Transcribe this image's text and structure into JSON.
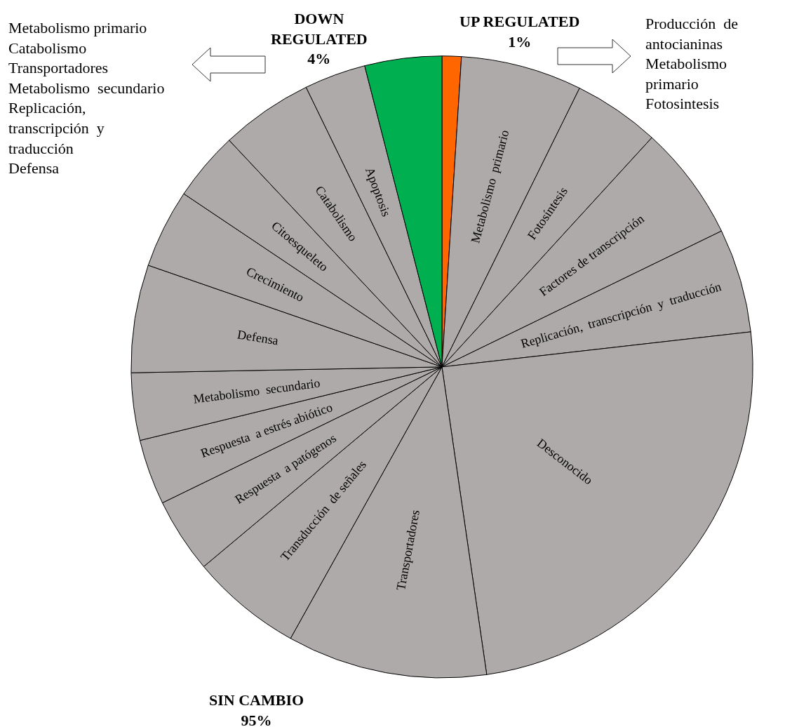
{
  "chart_data": {
    "type": "pie",
    "categories": [
      null,
      "Metabolismo  primario",
      "Fotosíntesis",
      "Factores de transcripción",
      "Replicación,  transcripción  y  traducción",
      "Desconocido",
      "Transportadores",
      "Transducción  de señales",
      "Respuesta  a patógenos",
      "Respuesta  a estrés abiótico",
      "Metabolismo  secundario",
      "Defensa",
      "Crecimiento",
      "Citoesqueleto",
      "Catabolismo",
      "Apoptosis",
      null
    ],
    "values": [
      1,
      6.3,
      4.5,
      6.0,
      5.4,
      24.5,
      10.4,
      5.8,
      3.9,
      3.4,
      3.5,
      5.6,
      4.1,
      3.6,
      4.8,
      3.2,
      4
    ],
    "colors": [
      "#ff6600",
      "#aeaaaa",
      "#aeaaaa",
      "#aeaaaa",
      "#aeaaaa",
      "#aeaaaa",
      "#aeaaaa",
      "#aeaaaa",
      "#aeaaaa",
      "#aeaaaa",
      "#aeaaaa",
      "#aeaaaa",
      "#aeaaaa",
      "#aeaaaa",
      "#aeaaaa",
      "#aeaaaa",
      "#00b050"
    ],
    "annotations": [
      "UP REGULATED\n1%",
      "DOWN\nREGULATED\n4%",
      "SIN CAMBIO\n95%",
      "Metabolismo primario\nCatabolismo\nTransportadores\nMetabolismo  secundario\nReplicación,\ntranscripción  y\ntraducción\nDefensa",
      "Producción  de\nantocianinas\nMetabolismo\nprimario\nFotosintesis"
    ],
    "legend": false
  }
}
